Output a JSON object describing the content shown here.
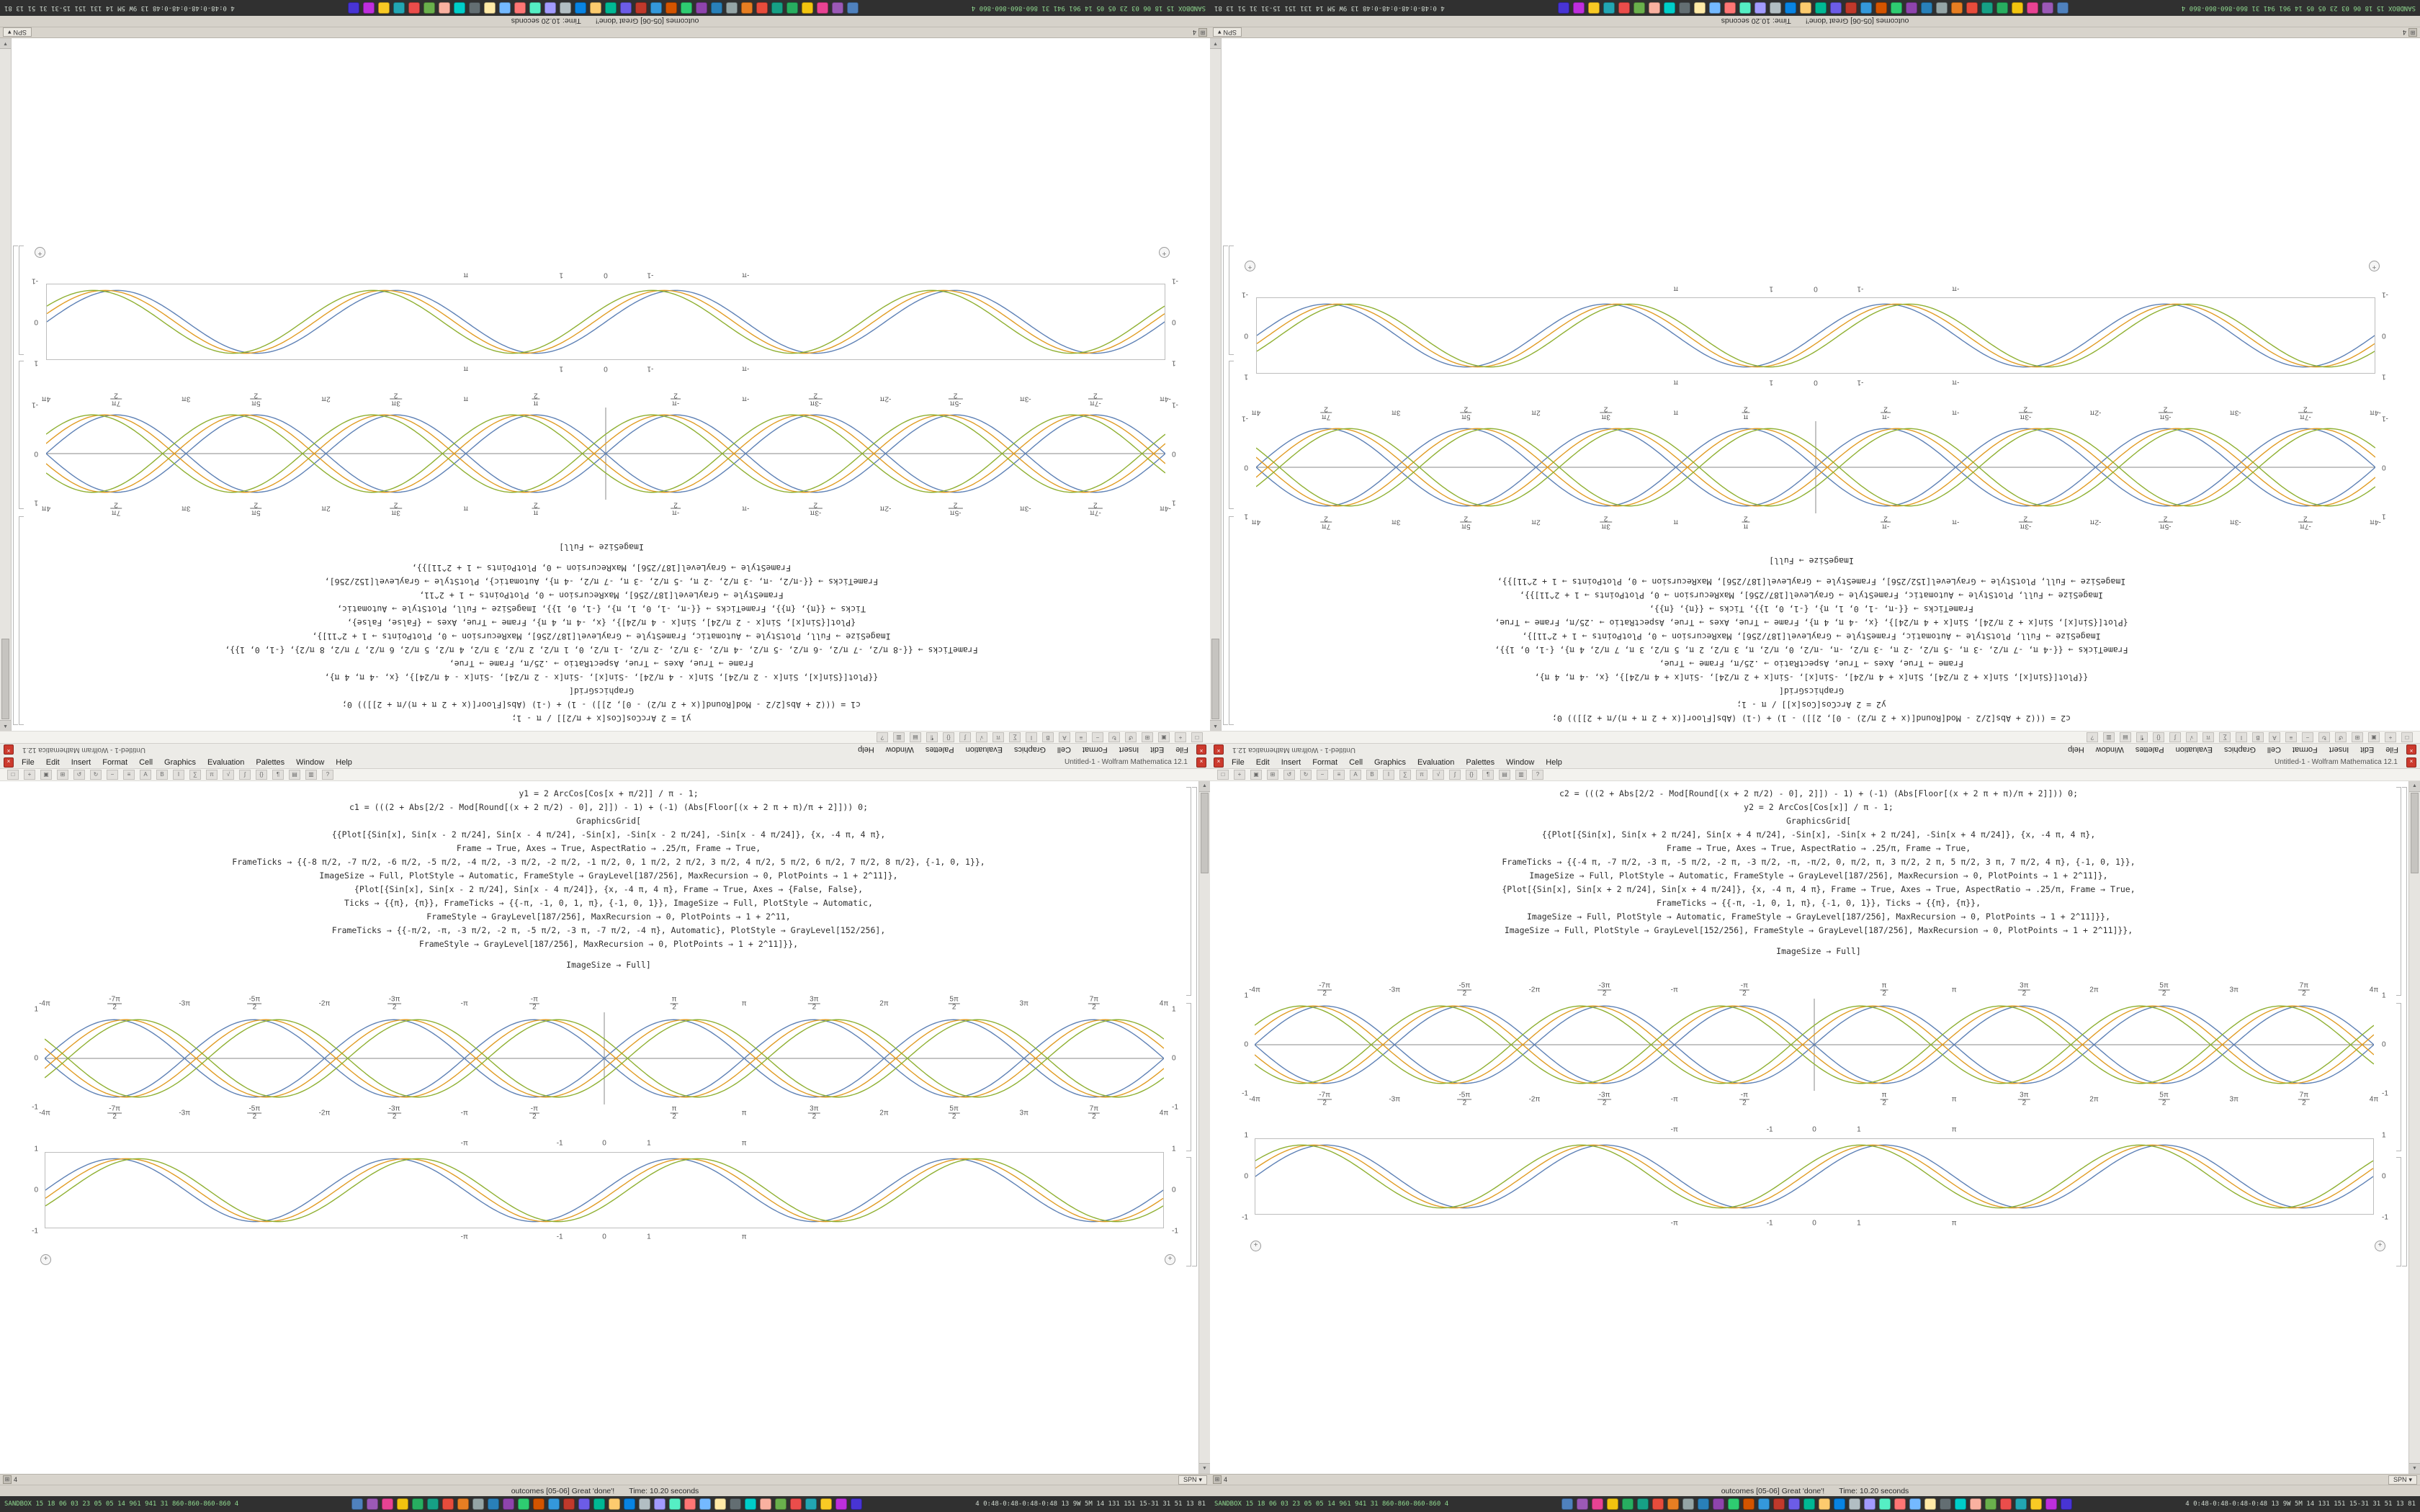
{
  "window": {
    "title": "Untitled-1 - Wolfram Mathematica 12.1",
    "menus": [
      "File",
      "Edit",
      "Insert",
      "Format",
      "Cell",
      "Graphics",
      "Evaluation",
      "Palettes",
      "Window",
      "Help"
    ],
    "toolbar_icons": [
      "□",
      "+",
      "▣",
      "⊞",
      "↺",
      "↻",
      "−",
      "≡",
      "A",
      "B",
      "I",
      "∑",
      "π",
      "√",
      "∫",
      "{}",
      "¶",
      "▤",
      "▥",
      "?"
    ]
  },
  "windowlist": {
    "count": "4",
    "tab": "SPN"
  },
  "status": {
    "message": "outcomes [05-06] Great 'done'!",
    "time": "Time: 10.20 seconds"
  },
  "taskbar": {
    "left_stats": "SANDBOX 15 18 06 03 23 05 05 14 961 941 31 860-860-860-860 4",
    "right_stats": "4 0:48-0:48-0:48-0:48 13 9W 5M 14 131 151 15-31 31 51 13 81",
    "icon_colors": [
      "#4f81bd",
      "#9b59b6",
      "#e84393",
      "#f1c40f",
      "#27ae60",
      "#16a085",
      "#e74c3c",
      "#e67e22",
      "#95a5a6",
      "#2980b9",
      "#8e44ad",
      "#2ecc71",
      "#d35400",
      "#3498db",
      "#c0392b",
      "#6c5ce7",
      "#00b894",
      "#fdcb6e",
      "#0984e3",
      "#b2bec3",
      "#a29bfe",
      "#55efc4",
      "#ff7675",
      "#74b9ff",
      "#ffeaa7",
      "#636e72",
      "#00cec9",
      "#fab1a0",
      "#6ab04c",
      "#eb4d4b",
      "#22a6b3",
      "#f9ca24",
      "#be2edd",
      "#4834d4"
    ]
  },
  "notebooks": {
    "left": {
      "code_lines": [
        "y1 = 2 ArcCos[Cos[x + π/2]] / π - 1;",
        "c1 = (((2 + Abs[2/2 - Mod[Round[(x + 2 π/2) - 0], 2]]) - 1) + (-1) (Abs[Floor[(x + 2 π + π)/π + 2]])) 0;",
        "GraphicsGrid[",
        "{{Plot[{Sin[x], Sin[x - 2 π/24], Sin[x - 4 π/24], -Sin[x], -Sin[x - 2 π/24], -Sin[x - 4 π/24]}, {x, -4 π, 4 π},",
        "Frame → True, Axes → True, AspectRatio → .25/π, Frame → True,",
        "FrameTicks → {{-8 π/2, -7 π/2, -6 π/2, -5 π/2, -4 π/2, -3 π/2, -2 π/2, -1 π/2, 0, 1 π/2, 2 π/2, 3 π/2, 4 π/2, 5 π/2, 6 π/2, 7 π/2, 8 π/2}, {-1, 0, 1}},",
        "ImageSize → Full, PlotStyle → Automatic, FrameStyle → GrayLevel[187/256], MaxRecursion → 0, PlotPoints → 1 + 2^11]},",
        "{Plot[{Sin[x], Sin[x - 2 π/24], Sin[x - 4 π/24]}, {x, -4 π, 4 π}, Frame → True, Axes → {False, False},",
        "Ticks → {{π}, {π}}, FrameTicks → {{-π, -1, 0, 1, π}, {-1, 0, 1}}, ImageSize → Full, PlotStyle → Automatic,",
        "FrameStyle → GrayLevel[187/256], MaxRecursion → 0, PlotPoints → 1 + 2^11,",
        "FrameTicks → {{-π/2, -π, -3 π/2, -2 π, -5 π/2, -3 π, -7 π/2, -4 π}, Automatic}, PlotStyle → GrayLevel[152/256],",
        "FrameStyle → GrayLevel[187/256], MaxRecursion → 0, PlotPoints → 1 + 2^11]}},"
      ],
      "code_tail": "ImageSize → Full]"
    },
    "right": {
      "code_lines": [
        "c2 = (((2 + Abs[2/2 - Mod[Round[(x + 2 π/2) - 0], 2]]) - 1) + (-1) (Abs[Floor[(x + 2 π + π)/π + 2]])) 0;",
        "y2 = 2 ArcCos[Cos[x]] / π - 1;",
        "GraphicsGrid[",
        "{{Plot[{Sin[x], Sin[x + 2 π/24], Sin[x + 4 π/24], -Sin[x], -Sin[x + 2 π/24], -Sin[x + 4 π/24]}, {x, -4 π, 4 π},",
        "Frame → True, Axes → True, AspectRatio → .25/π, Frame → True,",
        "FrameTicks → {{-4 π, -7 π/2, -3 π, -5 π/2, -2 π, -3 π/2, -π, -π/2, 0, π/2, π, 3 π/2, 2 π, 5 π/2, 3 π, 7 π/2, 4 π}, {-1, 0, 1}},",
        "ImageSize → Full, PlotStyle → Automatic, FrameStyle → GrayLevel[187/256], MaxRecursion → 0, PlotPoints → 1 + 2^11]},",
        "{Plot[{Sin[x], Sin[x + 2 π/24], Sin[x + 4 π/24]}, {x, -4 π, 4 π}, Frame → True, Axes → True, AspectRatio → .25/π, Frame → True,",
        "FrameTicks → {{-π, -1, 0, 1, π}, {-1, 0, 1}}, Ticks → {{π}, {π}},",
        "ImageSize → Full, PlotStyle → Automatic, FrameStyle → GrayLevel[187/256], MaxRecursion → 0, PlotPoints → 1 + 2^11]}},",
        "ImageSize → Full, PlotStyle → GrayLevel[152/256], FrameStyle → GrayLevel[187/256], MaxRecursion → 0, PlotPoints → 1 + 2^11]}},"
      ],
      "code_tail": "ImageSize → Full]"
    }
  },
  "chart_data": [
    {
      "type": "line",
      "notebook": "left",
      "role": "braided-sine-plot",
      "x_range": [
        -12.566,
        12.566
      ],
      "y_range": [
        -1,
        1
      ],
      "axes": true,
      "frame": false,
      "x_ticks": {
        "labels": [
          "-4π",
          "-7π/2",
          "-3π",
          "-5π/2",
          "-2π",
          "-3π/2",
          "-π",
          "-π/2",
          "",
          "π/2",
          "π",
          "3π/2",
          "2π",
          "5π/2",
          "3π",
          "7π/2",
          "4π"
        ],
        "positions": null
      },
      "y_ticks": [
        "1",
        "0",
        "-1"
      ],
      "series": [
        {
          "name": "Sin[x]",
          "phase": 0,
          "sign": 1,
          "color": "#5E81B5"
        },
        {
          "name": "-Sin[x]",
          "phase": 0,
          "sign": -1,
          "color": "#5E81B5"
        },
        {
          "name": "Sin[x - π/12]",
          "phase": -0.2618,
          "sign": 1,
          "color": "#E19C24"
        },
        {
          "name": "-Sin[x - π/12]",
          "phase": -0.2618,
          "sign": -1,
          "color": "#E19C24"
        },
        {
          "name": "Sin[x - π/6]",
          "phase": -0.5236,
          "sign": 1,
          "color": "#8FB032"
        },
        {
          "name": "-Sin[x - π/6]",
          "phase": -0.5236,
          "sign": -1,
          "color": "#8FB032"
        }
      ]
    },
    {
      "type": "line",
      "notebook": "left",
      "role": "framed-sine-plot",
      "x_range": [
        -12.566,
        12.566
      ],
      "y_range": [
        -1,
        1
      ],
      "axes": false,
      "frame": true,
      "x_ticks": {
        "labels": [
          "-π",
          "-1",
          "0",
          "1",
          "π"
        ],
        "positions": [
          0.375,
          0.4602,
          0.5,
          0.5398,
          0.625
        ]
      },
      "y_ticks": [
        "1",
        "0",
        "-1"
      ],
      "series": [
        {
          "name": "Sin[x]",
          "phase": 0,
          "sign": 1,
          "color": "#5E81B5"
        },
        {
          "name": "Sin[x - π/12]",
          "phase": -0.2618,
          "sign": 1,
          "color": "#E19C24"
        },
        {
          "name": "Sin[x - π/6]",
          "phase": -0.5236,
          "sign": 1,
          "color": "#8FB032"
        }
      ]
    },
    {
      "type": "line",
      "notebook": "right",
      "role": "braided-sine-plot",
      "x_range": [
        -12.566,
        12.566
      ],
      "y_range": [
        -1,
        1
      ],
      "axes": true,
      "frame": false,
      "x_ticks": {
        "labels": [
          "-4π",
          "-7π/2",
          "-3π",
          "-5π/2",
          "-2π",
          "-3π/2",
          "-π",
          "-π/2",
          "",
          "π/2",
          "π",
          "3π/2",
          "2π",
          "5π/2",
          "3π",
          "7π/2",
          "4π"
        ],
        "positions": null
      },
      "y_ticks": [
        "1",
        "0",
        "-1"
      ],
      "series": [
        {
          "name": "Sin[x]",
          "phase": 0,
          "sign": 1,
          "color": "#5E81B5"
        },
        {
          "name": "-Sin[x]",
          "phase": 0,
          "sign": -1,
          "color": "#5E81B5"
        },
        {
          "name": "Sin[x + π/12]",
          "phase": 0.2618,
          "sign": 1,
          "color": "#E19C24"
        },
        {
          "name": "-Sin[x + π/12]",
          "phase": 0.2618,
          "sign": -1,
          "color": "#E19C24"
        },
        {
          "name": "Sin[x + π/6]",
          "phase": 0.5236,
          "sign": 1,
          "color": "#8FB032"
        },
        {
          "name": "-Sin[x + π/6]",
          "phase": 0.5236,
          "sign": -1,
          "color": "#8FB032"
        }
      ]
    },
    {
      "type": "line",
      "notebook": "right",
      "role": "framed-sine-plot",
      "x_range": [
        -12.566,
        12.566
      ],
      "y_range": [
        -1,
        1
      ],
      "axes": false,
      "frame": true,
      "x_ticks": {
        "labels": [
          "-π",
          "-1",
          "0",
          "1",
          "π"
        ],
        "positions": [
          0.375,
          0.4602,
          0.5,
          0.5398,
          0.625
        ]
      },
      "y_ticks": [
        "1",
        "0",
        "-1"
      ],
      "series": [
        {
          "name": "Sin[x]",
          "phase": 0,
          "sign": 1,
          "color": "#5E81B5"
        },
        {
          "name": "Sin[x + π/12]",
          "phase": 0.2618,
          "sign": 1,
          "color": "#E19C24"
        },
        {
          "name": "Sin[x + π/6]",
          "phase": 0.5236,
          "sign": 1,
          "color": "#8FB032"
        }
      ]
    }
  ]
}
